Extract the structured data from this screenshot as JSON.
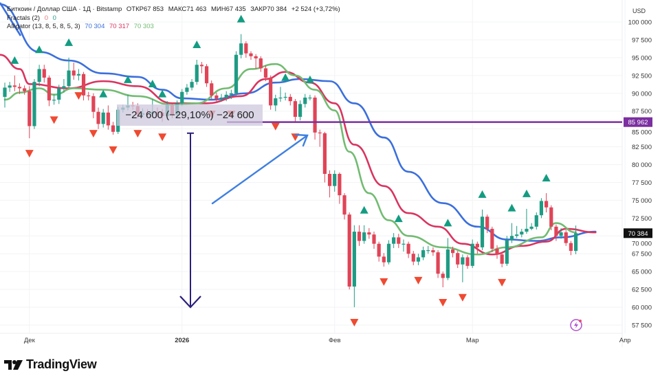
{
  "header": {
    "symbol": "Биткоин / Доллар США · 1Д · Bitstamp",
    "open_label": "ОТКР",
    "open": "67 853",
    "high_label": "МАКС",
    "high": "71 463",
    "low_label": "МИН",
    "low": "67 435",
    "close_label": "ЗАКР",
    "close": "70 384",
    "change": "+2 524 (+3,72%)"
  },
  "indicators": {
    "fractals": {
      "label": "Fractals (2)",
      "v1": "0",
      "v2": "0"
    },
    "alligator": {
      "label": "Alligator (13, 8, 5, 8, 5, 3)",
      "jaw": "70 304",
      "teeth": "70 317",
      "lips": "70 303"
    }
  },
  "currency": "USD",
  "measurement": "−24 600 (−29,10%) −24 600",
  "horizontal_line_label": "85 962",
  "last_price_label": "70 384",
  "logo_text": "TradingView",
  "colors": {
    "up": "#1f9b84",
    "down": "#e04457",
    "jaw": "#3b6fdc",
    "teeth": "#d9345f",
    "lips": "#72bb72",
    "fractal_up": "#139c82",
    "fractal_down": "#ef4a32",
    "hline": "#7b2fa0",
    "arrow": "#3f80e0",
    "measure_arrow": "#2a1f7a"
  },
  "chart_data": {
    "type": "candlestick",
    "start_date": "2025-11-26",
    "ylim": [
      56000,
      101500
    ],
    "y_ticks": [
      "100 000",
      "97 500",
      "95 000",
      "92 500",
      "90 000",
      "87 500",
      "85 000",
      "82 500",
      "80 000",
      "77 500",
      "75 000",
      "72 500",
      "70 000",
      "67 500",
      "65 000",
      "62 500",
      "60 000",
      "57 500"
    ],
    "y_tick_values": [
      100000,
      97500,
      95000,
      92500,
      90000,
      87500,
      85000,
      82500,
      80000,
      77500,
      75000,
      72500,
      70000,
      67500,
      65000,
      62500,
      60000,
      57500
    ],
    "x_ticks": [
      {
        "label": "Дек",
        "date": "2025-12-01",
        "bold": false
      },
      {
        "label": "2026",
        "date": "2026-01-01",
        "bold": true
      },
      {
        "label": "Фев",
        "date": "2026-02-01",
        "bold": false
      },
      {
        "label": "Мар",
        "date": "2026-03-01",
        "bold": false
      },
      {
        "label": "Апр",
        "date": "2026-04-01",
        "bold": false
      }
    ],
    "open_first": 89500,
    "close": [
      90800,
      91100,
      90900,
      90700,
      90300,
      85400,
      91600,
      93400,
      92200,
      89000,
      89100,
      90700,
      91000,
      93200,
      92500,
      92700,
      89700,
      89600,
      87400,
      85700,
      87300,
      85500,
      84600,
      87700,
      88000,
      88300,
      88200,
      87000,
      87200,
      87100,
      87400,
      87300,
      86800,
      88400,
      87000,
      88600,
      90200,
      90800,
      91600,
      94000,
      93800,
      91400,
      89700,
      89200,
      89400,
      89800,
      90000,
      95400,
      97000,
      95600,
      95200,
      94900,
      93500,
      92200,
      88300,
      89300,
      89400,
      89500,
      88900,
      86700,
      88500,
      89400,
      89400,
      84500,
      84400,
      78700,
      77000,
      78700,
      75700,
      73000,
      62900,
      70600,
      69300,
      70500,
      70200,
      68900,
      67100,
      66300,
      68900,
      69800,
      68900,
      68900,
      67500,
      66400,
      67000,
      68000,
      68000,
      67700,
      64700,
      64100,
      68100,
      67600,
      66000,
      67000,
      65800,
      68900,
      68400,
      72700,
      71000,
      68200,
      67400,
      66100,
      69400,
      70000,
      70200,
      70600,
      71000,
      71300,
      72900,
      74900,
      74000,
      71300,
      70000,
      70500,
      69000,
      67900,
      70384
    ],
    "high": [
      91500,
      91600,
      92500,
      91400,
      91100,
      91000,
      92000,
      94000,
      94000,
      92500,
      89900,
      91200,
      92000,
      95000,
      94300,
      93400,
      93000,
      90200,
      90000,
      88000,
      87800,
      88300,
      86000,
      88100,
      88400,
      89800,
      88800,
      88600,
      87900,
      87800,
      89200,
      88000,
      87800,
      88900,
      88700,
      89000,
      90600,
      91300,
      92000,
      94700,
      94400,
      94100,
      91800,
      90100,
      89900,
      90300,
      90500,
      95900,
      98300,
      97300,
      95900,
      95500,
      95200,
      93900,
      92500,
      89800,
      90900,
      90100,
      89900,
      89200,
      89000,
      89900,
      89800,
      89700,
      84900,
      84600,
      79200,
      79200,
      78900,
      76000,
      73300,
      71500,
      71500,
      71500,
      71100,
      70600,
      69200,
      67600,
      69400,
      70400,
      70300,
      69500,
      69200,
      67900,
      67500,
      68500,
      68600,
      68400,
      68000,
      65000,
      69700,
      68500,
      67900,
      67400,
      67300,
      69500,
      69200,
      73700,
      73000,
      71300,
      68700,
      67700,
      70000,
      71800,
      71400,
      71000,
      73800,
      71800,
      73300,
      75300,
      76000,
      74300,
      71600,
      71100,
      70800,
      69300,
      71463
    ],
    "low": [
      88000,
      90200,
      90300,
      89900,
      89800,
      83700,
      85000,
      91000,
      91500,
      88200,
      88400,
      88500,
      90100,
      90800,
      91900,
      91800,
      89000,
      89000,
      86500,
      85000,
      85200,
      84900,
      84200,
      84300,
      87300,
      87600,
      87700,
      86500,
      86600,
      86500,
      86700,
      86700,
      86000,
      86300,
      86500,
      86600,
      88200,
      89800,
      90400,
      91200,
      92800,
      90900,
      89200,
      88700,
      88800,
      88900,
      89200,
      89700,
      94900,
      95000,
      94700,
      93400,
      93000,
      91700,
      87700,
      87500,
      88800,
      89000,
      88300,
      86000,
      86200,
      88000,
      89000,
      83500,
      82500,
      77500,
      75400,
      76200,
      74500,
      72300,
      62500,
      60000,
      68600,
      68900,
      69600,
      68200,
      66400,
      65700,
      66000,
      68300,
      68300,
      67800,
      66900,
      65900,
      65900,
      66600,
      67500,
      67200,
      64100,
      62800,
      63800,
      67000,
      65500,
      63500,
      65400,
      65500,
      67500,
      68000,
      70400,
      67700,
      66800,
      65600,
      65800,
      69000,
      69700,
      69800,
      70300,
      70800,
      70900,
      72500,
      73300,
      70800,
      69300,
      69600,
      68600,
      67300,
      67435
    ],
    "alligator": {
      "jaw": [
        [
          "2025-11-25",
          102500
        ],
        [
          "2025-12-03",
          95800
        ],
        [
          "2025-12-09",
          94600
        ],
        [
          "2025-12-16",
          92800
        ],
        [
          "2025-12-23",
          92300
        ],
        [
          "2025-12-28",
          90500
        ],
        [
          "2026-01-01",
          89300
        ],
        [
          "2026-01-07",
          89100
        ],
        [
          "2026-01-14",
          90000
        ],
        [
          "2026-01-20",
          91500
        ],
        [
          "2026-01-25",
          92000
        ],
        [
          "2026-01-31",
          91700
        ],
        [
          "2026-02-05",
          88600
        ],
        [
          "2026-02-11",
          83800
        ],
        [
          "2026-02-16",
          79000
        ],
        [
          "2026-02-23",
          74600
        ],
        [
          "2026-03-02",
          71300
        ],
        [
          "2026-03-08",
          69500
        ],
        [
          "2026-03-14",
          69300
        ],
        [
          "2026-03-19",
          69800
        ],
        [
          "2026-03-26",
          70600
        ]
      ],
      "teeth": [
        [
          "2025-11-25",
          95400
        ],
        [
          "2025-11-29",
          93400
        ],
        [
          "2025-12-01",
          91300
        ],
        [
          "2025-12-09",
          90700
        ],
        [
          "2025-12-16",
          91700
        ],
        [
          "2025-12-23",
          91000
        ],
        [
          "2025-12-30",
          88600
        ],
        [
          "2026-01-06",
          88600
        ],
        [
          "2026-01-13",
          89600
        ],
        [
          "2026-01-18",
          92000
        ],
        [
          "2026-01-22",
          93000
        ],
        [
          "2026-01-27",
          91500
        ],
        [
          "2026-02-01",
          88600
        ],
        [
          "2026-02-05",
          82800
        ],
        [
          "2026-02-11",
          77000
        ],
        [
          "2026-02-16",
          73200
        ],
        [
          "2026-02-22",
          71300
        ],
        [
          "2026-02-27",
          68900
        ],
        [
          "2026-03-05",
          67400
        ],
        [
          "2026-03-11",
          68600
        ],
        [
          "2026-03-16",
          69200
        ],
        [
          "2026-03-20",
          71000
        ],
        [
          "2026-03-26",
          70500
        ]
      ],
      "lips": [
        [
          "2025-11-26",
          89100
        ],
        [
          "2025-11-29",
          90100
        ],
        [
          "2025-12-03",
          90700
        ],
        [
          "2025-12-06",
          89800
        ],
        [
          "2025-12-10",
          90700
        ],
        [
          "2025-12-16",
          90500
        ],
        [
          "2025-12-23",
          89600
        ],
        [
          "2025-12-30",
          88400
        ],
        [
          "2026-01-04",
          88600
        ],
        [
          "2026-01-10",
          90700
        ],
        [
          "2026-01-15",
          93400
        ],
        [
          "2026-01-20",
          94100
        ],
        [
          "2026-01-24",
          92500
        ],
        [
          "2026-01-28",
          90500
        ],
        [
          "2026-02-01",
          87600
        ],
        [
          "2026-02-04",
          81800
        ],
        [
          "2026-02-08",
          76000
        ],
        [
          "2026-02-12",
          72200
        ],
        [
          "2026-02-16",
          70000
        ],
        [
          "2026-02-23",
          68400
        ],
        [
          "2026-03-02",
          67400
        ],
        [
          "2026-03-08",
          68400
        ],
        [
          "2026-03-15",
          69800
        ],
        [
          "2026-03-18",
          71800
        ],
        [
          "2026-03-22",
          70500
        ]
      ]
    },
    "fractals": {
      "up": [
        3,
        8,
        14,
        21,
        26,
        31,
        33,
        40,
        49,
        58,
        63,
        74,
        81,
        91,
        98,
        104,
        107,
        111
      ],
      "down": [
        6,
        11,
        16,
        19,
        23,
        28,
        33,
        43,
        47,
        56,
        60,
        72,
        78,
        85,
        90,
        94,
        102
      ]
    },
    "horizontal_line": 85962,
    "last_price": 70384,
    "measure_from": 84600,
    "measure_to": 60000
  }
}
